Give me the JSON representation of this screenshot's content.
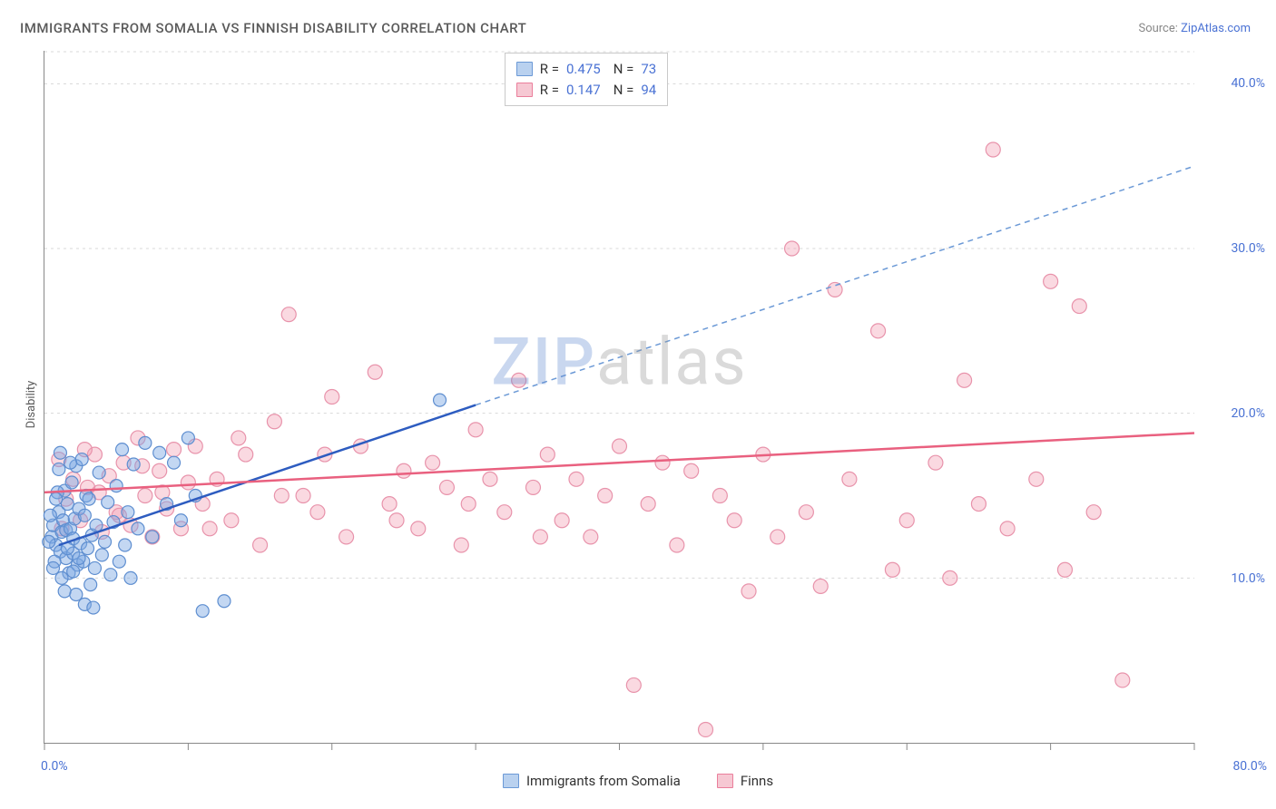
{
  "title": "IMMIGRANTS FROM SOMALIA VS FINNISH DISABILITY CORRELATION CHART",
  "source_label": "Source: ",
  "source_name": "ZipAtlas.com",
  "ylabel": "Disability",
  "watermark_a": "ZIP",
  "watermark_b": "atlas",
  "chart": {
    "type": "scatter",
    "xlim": [
      0,
      80
    ],
    "ylim": [
      0,
      42
    ],
    "y_gridlines": [
      10,
      20,
      30,
      40
    ],
    "y_tick_labels": [
      "10.0%",
      "20.0%",
      "30.0%",
      "40.0%"
    ],
    "x_ticks": [
      0,
      10,
      20,
      30,
      40,
      50,
      60,
      70,
      80
    ],
    "x_origin_label": "0.0%",
    "x_max_label": "80.0%",
    "background_color": "#ffffff",
    "grid_color": "#d8d8d8",
    "axis_color": "#888888",
    "tick_label_color": "#4a72d4",
    "series": [
      {
        "key": "somalia",
        "label": "Immigrants from Somalia",
        "R_label": "R = ",
        "R_value": "0.475",
        "N_label": "N = ",
        "N_value": "73",
        "point_fill": "rgba(121, 167, 227, 0.45)",
        "point_stroke": "#5e8ed0",
        "point_radius": 7,
        "swatch_fill": "#b9d1ef",
        "swatch_border": "#6b99d6",
        "line_color": "#2d5cc0",
        "line_width": 2.5,
        "dash_color": "#6b99d6",
        "trend_solid": {
          "x1": 1,
          "y1": 12,
          "x2": 30,
          "y2": 20.5
        },
        "trend_dash": {
          "x1": 30,
          "y1": 20.5,
          "x2": 80,
          "y2": 35
        },
        "points": [
          [
            0.5,
            12.5
          ],
          [
            0.6,
            13.2
          ],
          [
            0.8,
            12.0
          ],
          [
            1.0,
            14.0
          ],
          [
            1.1,
            11.6
          ],
          [
            1.2,
            12.8
          ],
          [
            1.3,
            13.5
          ],
          [
            1.4,
            15.3
          ],
          [
            1.5,
            11.2
          ],
          [
            1.5,
            12.9
          ],
          [
            1.6,
            14.5
          ],
          [
            1.7,
            10.3
          ],
          [
            1.8,
            13.0
          ],
          [
            1.9,
            15.8
          ],
          [
            2.0,
            11.5
          ],
          [
            2.0,
            12.4
          ],
          [
            2.1,
            13.6
          ],
          [
            2.2,
            16.8
          ],
          [
            2.3,
            10.8
          ],
          [
            2.4,
            14.2
          ],
          [
            2.5,
            12.1
          ],
          [
            2.6,
            17.2
          ],
          [
            2.7,
            11.0
          ],
          [
            2.8,
            13.8
          ],
          [
            2.9,
            15.0
          ],
          [
            3.0,
            11.8
          ],
          [
            3.1,
            14.8
          ],
          [
            3.2,
            9.6
          ],
          [
            3.3,
            12.6
          ],
          [
            3.5,
            10.6
          ],
          [
            3.6,
            13.2
          ],
          [
            3.8,
            16.4
          ],
          [
            4.0,
            11.4
          ],
          [
            4.2,
            12.2
          ],
          [
            4.4,
            14.6
          ],
          [
            4.6,
            10.2
          ],
          [
            4.8,
            13.4
          ],
          [
            5.0,
            15.6
          ],
          [
            5.2,
            11.0
          ],
          [
            5.4,
            17.8
          ],
          [
            5.6,
            12.0
          ],
          [
            5.8,
            14.0
          ],
          [
            6.0,
            10.0
          ],
          [
            6.2,
            16.9
          ],
          [
            6.5,
            13.0
          ],
          [
            7.0,
            18.2
          ],
          [
            7.5,
            12.5
          ],
          [
            8.0,
            17.6
          ],
          [
            8.5,
            14.5
          ],
          [
            9.0,
            17.0
          ],
          [
            9.5,
            13.5
          ],
          [
            10.0,
            18.5
          ],
          [
            10.5,
            15.0
          ],
          [
            11.0,
            8.0
          ],
          [
            2.8,
            8.4
          ],
          [
            3.4,
            8.2
          ],
          [
            1.0,
            16.6
          ],
          [
            1.1,
            17.6
          ],
          [
            0.9,
            15.2
          ],
          [
            0.7,
            11.0
          ],
          [
            0.4,
            13.8
          ],
          [
            0.3,
            12.2
          ],
          [
            0.6,
            10.6
          ],
          [
            0.8,
            14.8
          ],
          [
            1.2,
            10.0
          ],
          [
            1.4,
            9.2
          ],
          [
            1.6,
            11.8
          ],
          [
            1.8,
            17.0
          ],
          [
            2.0,
            10.4
          ],
          [
            2.2,
            9.0
          ],
          [
            2.4,
            11.2
          ],
          [
            27.5,
            20.8
          ],
          [
            12.5,
            8.6
          ]
        ]
      },
      {
        "key": "finns",
        "label": "Finns",
        "R_label": "R = ",
        "R_value": "0.147",
        "N_label": "N = ",
        "N_value": "94",
        "point_fill": "rgba(242, 160, 180, 0.40)",
        "point_stroke": "#e893ab",
        "point_radius": 8,
        "swatch_fill": "#f6c8d3",
        "swatch_border": "#ea7e9b",
        "line_color": "#e9607f",
        "line_width": 2.5,
        "trend_solid": {
          "x1": 0,
          "y1": 15.2,
          "x2": 80,
          "y2": 18.8
        },
        "points": [
          [
            1.0,
            17.2
          ],
          [
            1.5,
            14.8
          ],
          [
            2.0,
            16.0
          ],
          [
            2.5,
            13.5
          ],
          [
            3.0,
            15.5
          ],
          [
            3.5,
            17.5
          ],
          [
            4.0,
            12.8
          ],
          [
            4.5,
            16.2
          ],
          [
            5.0,
            14.0
          ],
          [
            5.5,
            17.0
          ],
          [
            6.0,
            13.2
          ],
          [
            6.5,
            18.5
          ],
          [
            7.0,
            15.0
          ],
          [
            7.5,
            12.5
          ],
          [
            8.0,
            16.5
          ],
          [
            8.5,
            14.2
          ],
          [
            9.0,
            17.8
          ],
          [
            9.5,
            13.0
          ],
          [
            10.0,
            15.8
          ],
          [
            10.5,
            18.0
          ],
          [
            11.0,
            14.5
          ],
          [
            12.0,
            16.0
          ],
          [
            13.0,
            13.5
          ],
          [
            14.0,
            17.5
          ],
          [
            15.0,
            12.0
          ],
          [
            16.0,
            19.5
          ],
          [
            17.0,
            26.0
          ],
          [
            18.0,
            15.0
          ],
          [
            19.0,
            14.0
          ],
          [
            20.0,
            21.0
          ],
          [
            21.0,
            12.5
          ],
          [
            22.0,
            18.0
          ],
          [
            23.0,
            22.5
          ],
          [
            24.0,
            14.5
          ],
          [
            25.0,
            16.5
          ],
          [
            26.0,
            13.0
          ],
          [
            27.0,
            17.0
          ],
          [
            28.0,
            15.5
          ],
          [
            29.0,
            12.0
          ],
          [
            30.0,
            19.0
          ],
          [
            31.0,
            16.0
          ],
          [
            32.0,
            14.0
          ],
          [
            33.0,
            22.0
          ],
          [
            34.0,
            15.5
          ],
          [
            35.0,
            17.5
          ],
          [
            36.0,
            13.5
          ],
          [
            37.0,
            16.0
          ],
          [
            38.0,
            12.5
          ],
          [
            39.0,
            15.0
          ],
          [
            40.0,
            18.0
          ],
          [
            41.0,
            3.5
          ],
          [
            42.0,
            14.5
          ],
          [
            43.0,
            17.0
          ],
          [
            44.0,
            12.0
          ],
          [
            45.0,
            16.5
          ],
          [
            46.0,
            0.8
          ],
          [
            47.0,
            15.0
          ],
          [
            48.0,
            13.5
          ],
          [
            49.0,
            9.2
          ],
          [
            50.0,
            17.5
          ],
          [
            51.0,
            12.5
          ],
          [
            52.0,
            30.0
          ],
          [
            53.0,
            14.0
          ],
          [
            54.0,
            9.5
          ],
          [
            55.0,
            27.5
          ],
          [
            56.0,
            16.0
          ],
          [
            58.0,
            25.0
          ],
          [
            59.0,
            10.5
          ],
          [
            60.0,
            13.5
          ],
          [
            62.0,
            17.0
          ],
          [
            63.0,
            10.0
          ],
          [
            64.0,
            22.0
          ],
          [
            65.0,
            14.5
          ],
          [
            66.0,
            36.0
          ],
          [
            67.0,
            13.0
          ],
          [
            69.0,
            16.0
          ],
          [
            70.0,
            28.0
          ],
          [
            71.0,
            10.5
          ],
          [
            72.0,
            26.5
          ],
          [
            73.0,
            14.0
          ],
          [
            75.0,
            3.8
          ],
          [
            1.2,
            13.0
          ],
          [
            2.8,
            17.8
          ],
          [
            3.8,
            15.2
          ],
          [
            5.2,
            13.8
          ],
          [
            6.8,
            16.8
          ],
          [
            8.2,
            15.2
          ],
          [
            11.5,
            13.0
          ],
          [
            13.5,
            18.5
          ],
          [
            16.5,
            15.0
          ],
          [
            19.5,
            17.5
          ],
          [
            24.5,
            13.5
          ],
          [
            29.5,
            14.5
          ],
          [
            34.5,
            12.5
          ]
        ]
      }
    ]
  }
}
